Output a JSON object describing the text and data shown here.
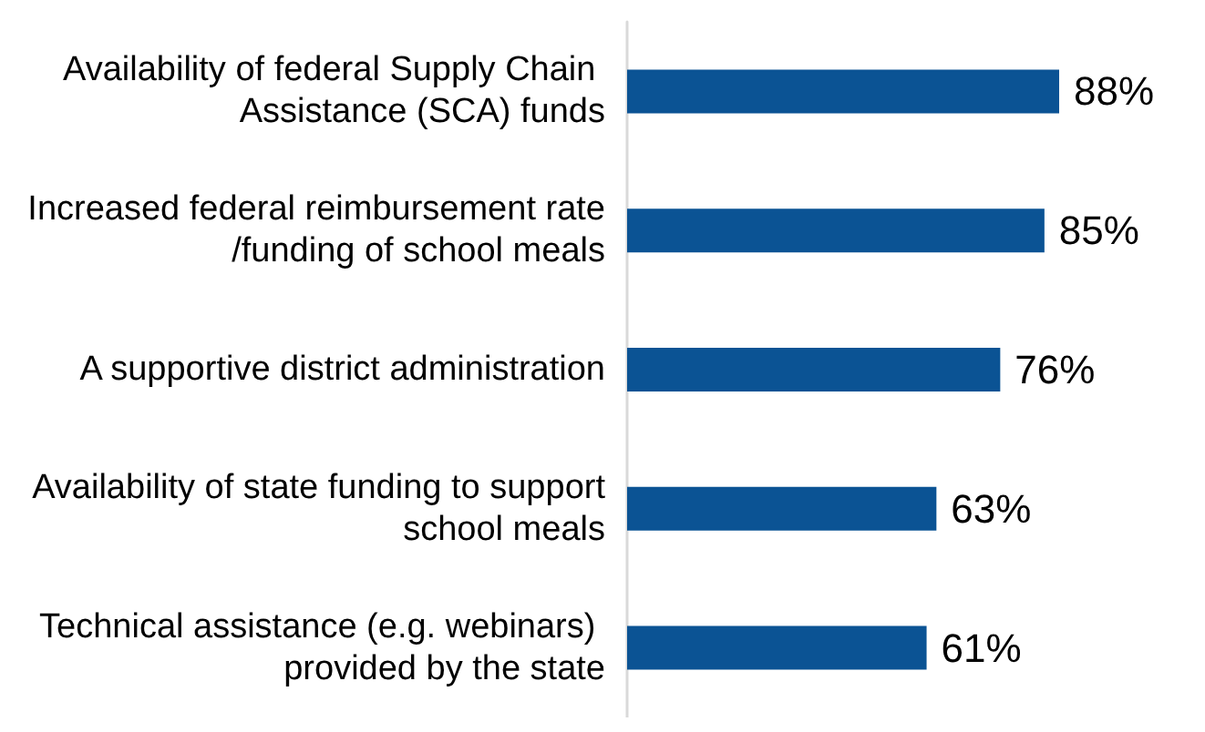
{
  "chart_data": {
    "type": "bar",
    "orientation": "horizontal",
    "categories": [
      "Availability of federal Supply Chain Assistance (SCA) funds",
      "Increased federal reimbursement rate/funding of school meals",
      "A supportive district administration",
      "Availability of state funding to support school meals",
      "Technical assistance (e.g. webinars) provided by the state"
    ],
    "values": [
      88,
      85,
      76,
      63,
      61
    ],
    "value_labels": [
      "88%",
      "85%",
      "76%",
      "63%",
      "61%"
    ],
    "color": "#0b5394"
  }
}
